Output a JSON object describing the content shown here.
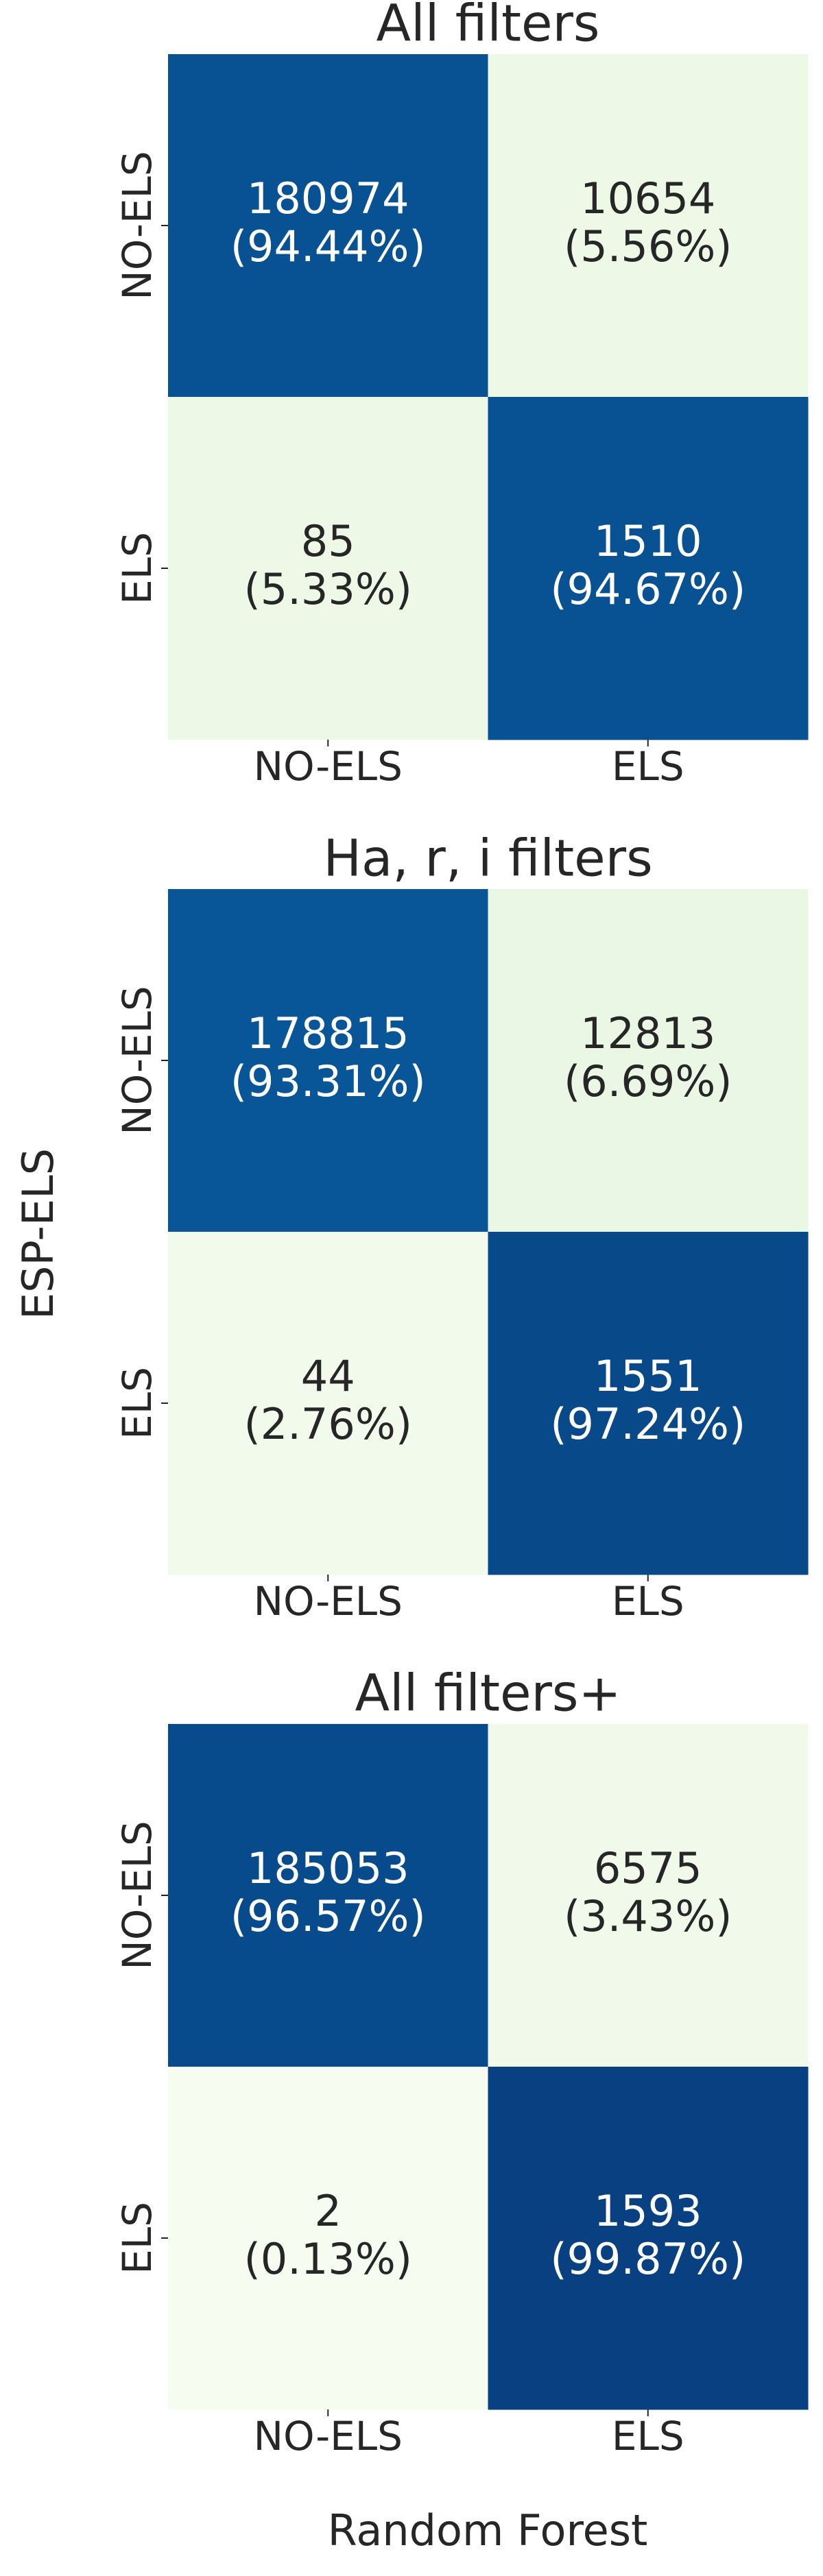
{
  "chart_data": [
    {
      "type": "heatmap",
      "title": "All filters",
      "rows": [
        "NO-ELS",
        "ELS"
      ],
      "columns": [
        "NO-ELS",
        "ELS"
      ],
      "values": [
        [
          180974,
          10654
        ],
        [
          85,
          1510
        ]
      ],
      "percents": [
        [
          {
            "value": 94.44,
            "label": "(94.44%)"
          },
          {
            "value": 5.56,
            "label": "(5.56%)"
          }
        ],
        [
          {
            "value": 5.33,
            "label": "(5.33%)"
          },
          {
            "value": 94.67,
            "label": "(94.67%)"
          }
        ]
      ],
      "colormap": "GnBu",
      "clim": [
        0,
        100
      ]
    },
    {
      "type": "heatmap",
      "title": "Ha, r, i filters",
      "rows": [
        "NO-ELS",
        "ELS"
      ],
      "columns": [
        "NO-ELS",
        "ELS"
      ],
      "values": [
        [
          178815,
          12813
        ],
        [
          44,
          1551
        ]
      ],
      "percents": [
        [
          {
            "value": 93.31,
            "label": "(93.31%)"
          },
          {
            "value": 6.69,
            "label": "(6.69%)"
          }
        ],
        [
          {
            "value": 2.76,
            "label": "(2.76%)"
          },
          {
            "value": 97.24,
            "label": "(97.24%)"
          }
        ]
      ],
      "colormap": "GnBu",
      "clim": [
        0,
        100
      ]
    },
    {
      "type": "heatmap",
      "title": "All filters+",
      "rows": [
        "NO-ELS",
        "ELS"
      ],
      "columns": [
        "NO-ELS",
        "ELS"
      ],
      "values": [
        [
          185053,
          6575
        ],
        [
          2,
          1593
        ]
      ],
      "percents": [
        [
          {
            "value": 96.57,
            "label": "(96.57%)"
          },
          {
            "value": 3.43,
            "label": "(3.43%)"
          }
        ],
        [
          {
            "value": 0.13,
            "label": "(0.13%)"
          },
          {
            "value": 99.87,
            "label": "(99.87%)"
          }
        ]
      ],
      "colormap": "GnBu",
      "clim": [
        0,
        100
      ]
    }
  ],
  "ylabel": "ESP-ELS",
  "xlabel": "Random Forest"
}
